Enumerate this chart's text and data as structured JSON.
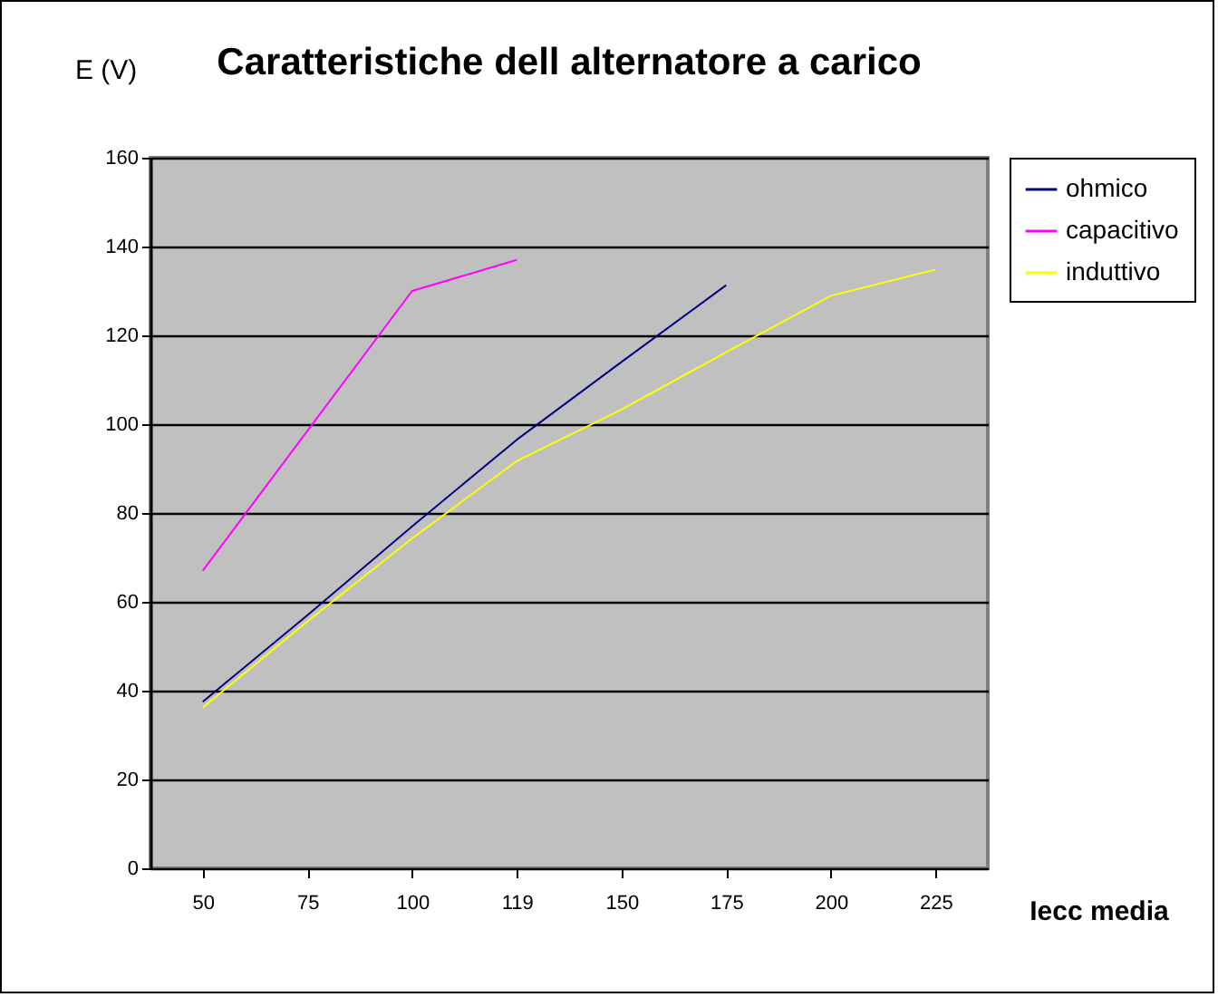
{
  "chart_data": {
    "type": "line",
    "title": "Caratteristiche dell alternatore a carico",
    "xlabel": "Iecc media",
    "ylabel": "E (V)",
    "categories": [
      "50",
      "75",
      "100",
      "119",
      "150",
      "175",
      "200",
      "225"
    ],
    "series": [
      {
        "name": "ohmico",
        "color": "#000080",
        "values": [
          37.5,
          57,
          77,
          96.5,
          114,
          131.3,
          null,
          null
        ]
      },
      {
        "name": "capacitivo",
        "color": "#ff00ff",
        "values": [
          67,
          null,
          130,
          137,
          null,
          null,
          null,
          null
        ]
      },
      {
        "name": "induttivo",
        "color": "#ffff00",
        "values": [
          36.2,
          55.6,
          74.3,
          91.7,
          103.3,
          116.2,
          128.9,
          134.8
        ]
      }
    ],
    "ylim": [
      0,
      160
    ],
    "yticks": [
      0,
      20,
      40,
      60,
      80,
      100,
      120,
      140,
      160
    ],
    "grid": "y",
    "legend": "right",
    "marker": "none",
    "line_style": "solid"
  }
}
